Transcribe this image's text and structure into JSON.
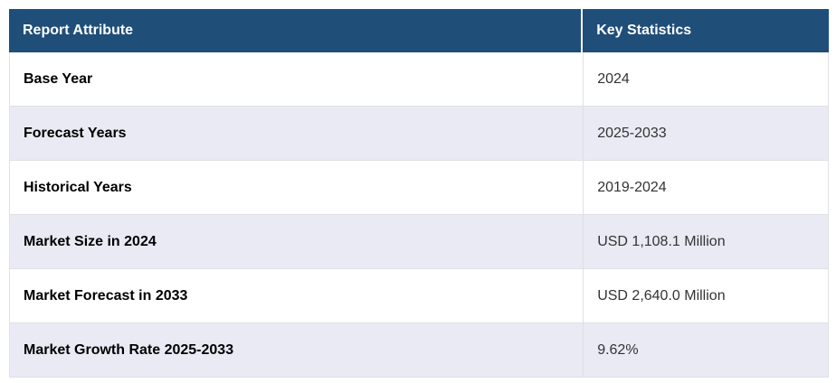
{
  "table": {
    "headers": [
      "Report Attribute",
      "Key Statistics"
    ],
    "rows": [
      {
        "attribute": "Base Year",
        "value": "2024"
      },
      {
        "attribute": "Forecast Years",
        "value": "2025-2033"
      },
      {
        "attribute": "Historical Years",
        "value": "2019-2024"
      },
      {
        "attribute": "Market Size in 2024",
        "value": "USD 1,108.1 Million"
      },
      {
        "attribute": "Market Forecast in 2033",
        "value": "USD 2,640.0 Million"
      },
      {
        "attribute": "Market Growth Rate 2025-2033",
        "value": "9.62%"
      }
    ],
    "colors": {
      "header_bg": "#1f4e79",
      "header_text": "#ffffff",
      "row_bg": "#ffffff",
      "row_alt_bg": "#e9eaf4",
      "border": "#e0e0e6",
      "attribute_text": "#000000",
      "value_text": "#333333"
    }
  },
  "chart_data": {
    "type": "table",
    "title": "",
    "columns": [
      "Report Attribute",
      "Key Statistics"
    ],
    "rows": [
      [
        "Base Year",
        "2024"
      ],
      [
        "Forecast Years",
        "2025-2033"
      ],
      [
        "Historical Years",
        "2019-2024"
      ],
      [
        "Market Size in 2024",
        "USD 1,108.1 Million"
      ],
      [
        "Market Forecast in 2033",
        "USD 2,640.0 Million"
      ],
      [
        "Market Growth Rate 2025-2033",
        "9.62%"
      ]
    ]
  }
}
